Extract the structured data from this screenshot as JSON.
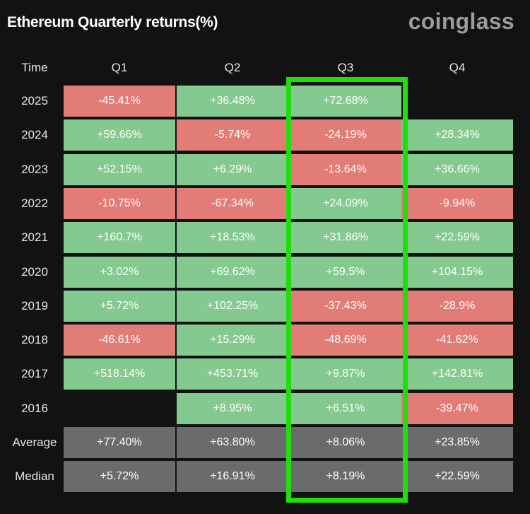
{
  "header": {
    "title": "Ethereum Quarterly returns(%)",
    "brand": "coinglass"
  },
  "colors": {
    "positive": "#84c98f",
    "negative": "#e27c76",
    "summary": "#6b6b6e",
    "highlight": "#22dd0c"
  },
  "chart_data": {
    "type": "table",
    "title": "Ethereum Quarterly returns(%)",
    "corner_label": "Time",
    "columns": [
      "Q1",
      "Q2",
      "Q3",
      "Q4"
    ],
    "highlighted_column": "Q3",
    "rows": [
      {
        "label": "2025",
        "values": [
          "-45.41%",
          "+36.48%",
          "+72.68%",
          ""
        ]
      },
      {
        "label": "2024",
        "values": [
          "+59.66%",
          "-5.74%",
          "-24.19%",
          "+28.34%"
        ]
      },
      {
        "label": "2023",
        "values": [
          "+52.15%",
          "+6.29%",
          "-13.64%",
          "+36.66%"
        ]
      },
      {
        "label": "2022",
        "values": [
          "-10.75%",
          "-67.34%",
          "+24.09%",
          "-9.94%"
        ]
      },
      {
        "label": "2021",
        "values": [
          "+160.7%",
          "+18.53%",
          "+31.86%",
          "+22.59%"
        ]
      },
      {
        "label": "2020",
        "values": [
          "+3.02%",
          "+69.62%",
          "+59.5%",
          "+104.15%"
        ]
      },
      {
        "label": "2019",
        "values": [
          "+5.72%",
          "+102.25%",
          "-37.43%",
          "-28.9%"
        ]
      },
      {
        "label": "2018",
        "values": [
          "-46.61%",
          "+15.29%",
          "-48.69%",
          "-41.62%"
        ]
      },
      {
        "label": "2017",
        "values": [
          "+518.14%",
          "+453.71%",
          "+9.87%",
          "+142.81%"
        ]
      },
      {
        "label": "2016",
        "values": [
          "",
          "+8.95%",
          "+6.51%",
          "-39.47%"
        ]
      }
    ],
    "summary_rows": [
      {
        "label": "Average",
        "values": [
          "+77.40%",
          "+63.80%",
          "+8.06%",
          "+23.85%"
        ]
      },
      {
        "label": "Median",
        "values": [
          "+5.72%",
          "+16.91%",
          "+8.19%",
          "+22.59%"
        ]
      }
    ]
  }
}
